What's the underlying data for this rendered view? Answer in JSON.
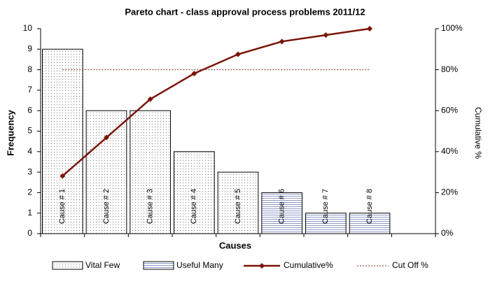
{
  "chart_data": {
    "type": "bar",
    "title": "Pareto chart - class approval process problems 2011/12",
    "x_label": "Causes",
    "y_label": "Frequency",
    "y2_label": "Cumulative %",
    "categories": [
      "Cause # 1",
      "Cause # 2",
      "Cause # 3",
      "Cause # 4",
      "Cause # 5",
      "Cause # 6",
      "Cause # 7",
      "Cause # 8"
    ],
    "series": [
      {
        "name": "Vital Few",
        "type": "bar",
        "pattern": "dots",
        "color": "#000000",
        "values": [
          9,
          6,
          6,
          4,
          3,
          null,
          null,
          null
        ]
      },
      {
        "name": "Useful Many",
        "type": "bar",
        "pattern": "hlines",
        "color": "#6f7fb8",
        "values": [
          null,
          null,
          null,
          null,
          null,
          2,
          1,
          1
        ]
      },
      {
        "name": "Cumulative%",
        "type": "line",
        "axis": "y2",
        "marker": "diamond",
        "color": "#7a1408",
        "values": [
          28.125,
          46.875,
          65.625,
          78.125,
          87.5,
          93.75,
          96.875,
          100
        ]
      },
      {
        "name": "Cut Off %",
        "type": "line",
        "axis": "y2",
        "dashed": true,
        "color": "#8b2a2a",
        "values": [
          80,
          80,
          80,
          80,
          80,
          80,
          80,
          80
        ]
      }
    ],
    "ylim": [
      0,
      10
    ],
    "yticks": [
      0,
      1,
      2,
      3,
      4,
      5,
      6,
      7,
      8,
      9,
      10
    ],
    "y2lim": [
      0,
      100
    ],
    "y2ticks": [
      {
        "value": 0,
        "label": "0%"
      },
      {
        "value": 20,
        "label": "20%"
      },
      {
        "value": 40,
        "label": "40%"
      },
      {
        "value": 60,
        "label": "60%"
      },
      {
        "value": 80,
        "label": "80%"
      },
      {
        "value": 100,
        "label": "100%"
      }
    ],
    "grid": false,
    "legend": "bottom"
  }
}
